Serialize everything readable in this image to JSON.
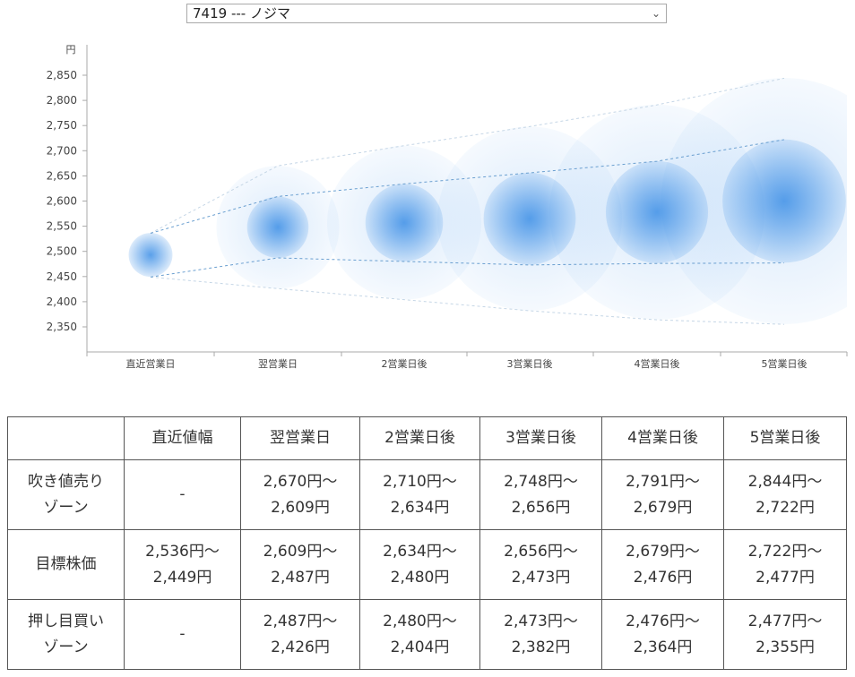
{
  "selector": {
    "value": "7419 --- ノジマ"
  },
  "chart_data": {
    "type": "bubble-range",
    "y_unit": "円",
    "ylim": [
      2320,
      2870
    ],
    "y_ticks": [
      "2,350",
      "2,400",
      "2,450",
      "2,500",
      "2,550",
      "2,600",
      "2,650",
      "2,700",
      "2,750",
      "2,800",
      "2,850"
    ],
    "y_tick_values": [
      2350,
      2400,
      2450,
      2500,
      2550,
      2600,
      2650,
      2700,
      2750,
      2800,
      2850
    ],
    "categories": [
      "直近営業日",
      "翌営業日",
      "2営業日後",
      "3営業日後",
      "4営業日後",
      "5営業日後"
    ],
    "center": [
      2493,
      2548,
      2557,
      2565,
      2578,
      2600
    ],
    "target_upper": [
      2536,
      2609,
      2634,
      2656,
      2679,
      2722
    ],
    "target_lower": [
      2449,
      2487,
      2480,
      2473,
      2476,
      2477
    ],
    "outer_upper": [
      2536,
      2670,
      2710,
      2748,
      2791,
      2844
    ],
    "outer_lower": [
      2449,
      2426,
      2404,
      2382,
      2364,
      2355
    ],
    "bubble_color": "#3d8fe6"
  },
  "table": {
    "headers": [
      "",
      "直近値幅",
      "翌営業日",
      "2営業日後",
      "3営業日後",
      "4営業日後",
      "5営業日後"
    ],
    "rows": [
      {
        "label": [
          "吹き値売り",
          "ゾーン"
        ],
        "cells": [
          [
            "-"
          ],
          [
            "2,670円～",
            "2,609円"
          ],
          [
            "2,710円～",
            "2,634円"
          ],
          [
            "2,748円～",
            "2,656円"
          ],
          [
            "2,791円～",
            "2,679円"
          ],
          [
            "2,844円～",
            "2,722円"
          ]
        ]
      },
      {
        "label": [
          "目標株価"
        ],
        "cells": [
          [
            "2,536円～",
            "2,449円"
          ],
          [
            "2,609円～",
            "2,487円"
          ],
          [
            "2,634円～",
            "2,480円"
          ],
          [
            "2,656円～",
            "2,473円"
          ],
          [
            "2,679円～",
            "2,476円"
          ],
          [
            "2,722円～",
            "2,477円"
          ]
        ]
      },
      {
        "label": [
          "押し目買い",
          "ゾーン"
        ],
        "cells": [
          [
            "-"
          ],
          [
            "2,487円～",
            "2,426円"
          ],
          [
            "2,480円～",
            "2,404円"
          ],
          [
            "2,473円～",
            "2,382円"
          ],
          [
            "2,476円～",
            "2,364円"
          ],
          [
            "2,477円～",
            "2,355円"
          ]
        ]
      }
    ]
  }
}
